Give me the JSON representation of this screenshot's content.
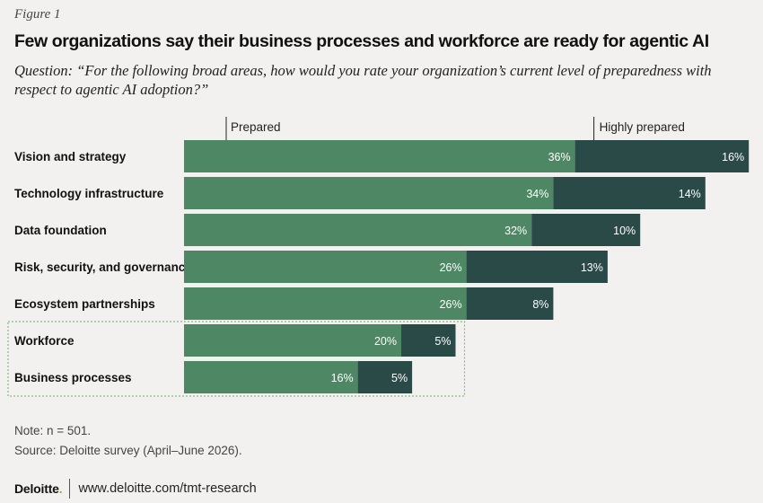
{
  "figure_label": "Figure 1",
  "title": "Few organizations say their business processes and workforce are ready for agentic AI",
  "question": "Question: “For the following broad areas, how would you rate your organization’s current level of preparedness with respect to agentic AI adoption?”",
  "chart_data": {
    "type": "bar",
    "orientation": "horizontal",
    "stacked": true,
    "categories": [
      "Vision and strategy",
      "Technology infrastructure",
      "Data foundation",
      "Risk, security, and governance",
      "Ecosystem partnerships",
      "Workforce",
      "Business processes"
    ],
    "series": [
      {
        "name": "Prepared",
        "values": [
          36,
          34,
          32,
          26,
          26,
          20,
          16
        ],
        "color": "#4d8763"
      },
      {
        "name": "Highly prepared",
        "values": [
          16,
          14,
          10,
          13,
          8,
          5,
          5
        ],
        "color": "#2a4a48"
      }
    ],
    "value_suffix": "%",
    "highlighted_categories": [
      "Workforce",
      "Business processes"
    ],
    "legend_placement": "top"
  },
  "note": "Note: n = 501.",
  "source": "Source: Deloitte survey (April–June 2026).",
  "footer": {
    "logo": "Deloitte",
    "logo_dot": ".",
    "url": "www.deloitte.com/tmt-research"
  },
  "colors": {
    "background": "#f2f1ef",
    "highlight_box": "#7cc07c",
    "brand_green": "#86bc25"
  }
}
